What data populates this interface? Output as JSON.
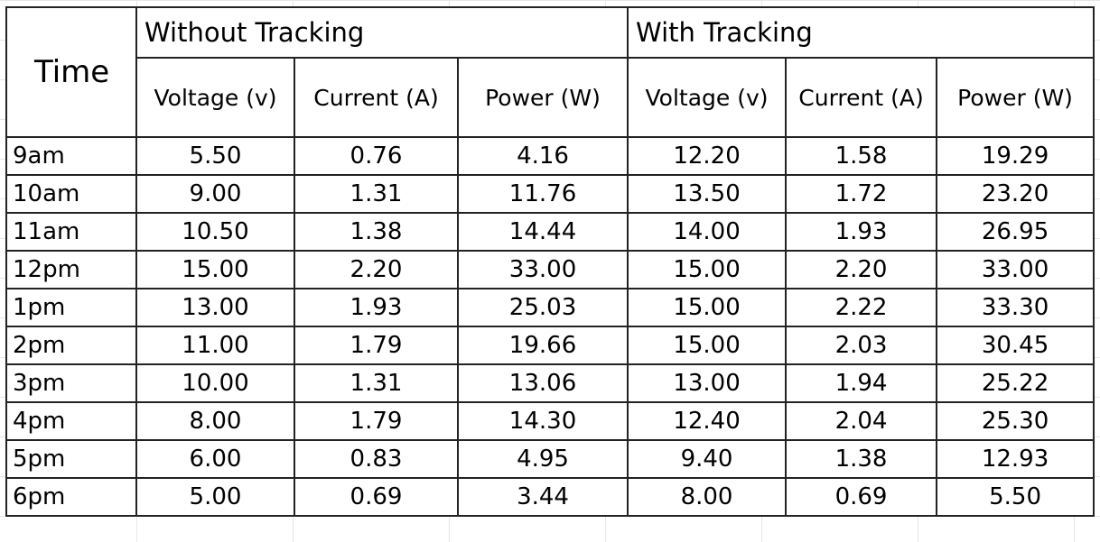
{
  "table": {
    "time_header": "Time",
    "groups": [
      "Without Tracking",
      "With Tracking"
    ],
    "column_headers": [
      "Voltage (v)",
      "Current (A)",
      "Power (W)",
      "Voltage (v)",
      "Current (A)",
      "Power (W)"
    ],
    "rows": [
      {
        "time": "9am",
        "values": [
          "5.50",
          "0.76",
          "4.16",
          "12.20",
          "1.58",
          "19.29"
        ]
      },
      {
        "time": "10am",
        "values": [
          "9.00",
          "1.31",
          "11.76",
          "13.50",
          "1.72",
          "23.20"
        ]
      },
      {
        "time": "11am",
        "values": [
          "10.50",
          "1.38",
          "14.44",
          "14.00",
          "1.93",
          "26.95"
        ]
      },
      {
        "time": "12pm",
        "values": [
          "15.00",
          "2.20",
          "33.00",
          "15.00",
          "2.20",
          "33.00"
        ]
      },
      {
        "time": "1pm",
        "values": [
          "13.00",
          "1.93",
          "25.03",
          "15.00",
          "2.22",
          "33.30"
        ]
      },
      {
        "time": "2pm",
        "values": [
          "11.00",
          "1.79",
          "19.66",
          "15.00",
          "2.03",
          "30.45"
        ]
      },
      {
        "time": "3pm",
        "values": [
          "10.00",
          "1.31",
          "13.06",
          "13.00",
          "1.94",
          "25.22"
        ]
      },
      {
        "time": "4pm",
        "values": [
          "8.00",
          "1.79",
          "14.30",
          "12.40",
          "2.04",
          "25.30"
        ]
      },
      {
        "time": "5pm",
        "values": [
          "6.00",
          "0.83",
          "4.95",
          "9.40",
          "1.38",
          "12.93"
        ]
      },
      {
        "time": "6pm",
        "values": [
          "5.00",
          "0.69",
          "3.44",
          "8.00",
          "0.69",
          "5.50"
        ]
      }
    ]
  }
}
